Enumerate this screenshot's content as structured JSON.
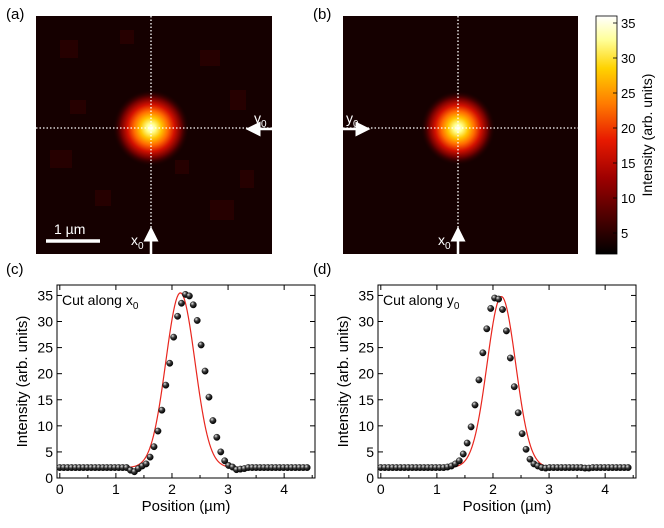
{
  "panels": {
    "a": {
      "label": "(a)",
      "scale_bar": "1 µm",
      "marker_x": "x",
      "marker_x_sub": "0",
      "marker_y": "y",
      "marker_y_sub": "0"
    },
    "b": {
      "label": "(b)",
      "marker_x": "x",
      "marker_x_sub": "0",
      "marker_y": "y",
      "marker_y_sub": "0"
    },
    "c": {
      "label": "(c)"
    },
    "d": {
      "label": "(d)"
    }
  },
  "colorbar": {
    "label": "Intensity (arb. units)",
    "ticks": [
      "35",
      "30",
      "25",
      "20",
      "15",
      "10",
      "5"
    ],
    "tick_values": [
      35,
      30,
      25,
      20,
      15,
      10,
      5
    ],
    "range": [
      2,
      36
    ],
    "colormap": [
      "#000000",
      "#4a0000",
      "#9e0000",
      "#e81a00",
      "#ff7a00",
      "#ffd200",
      "#ffff99",
      "#ffffff"
    ]
  },
  "colors": {
    "fit": "#e8261e",
    "points": "#1a1a1a",
    "marker": "#ffffff"
  },
  "chart_data": [
    {
      "type": "scatter",
      "panel": "c",
      "annotation": "Cut along x",
      "annotation_sub": "0",
      "xlabel": "Position (µm)",
      "ylabel": "Intensity (arb. units)",
      "xlim": [
        -0.05,
        4.55
      ],
      "ylim": [
        0,
        37
      ],
      "xticks": [
        0,
        1,
        2,
        3,
        4
      ],
      "yticks": [
        0,
        5,
        10,
        15,
        20,
        25,
        30,
        35
      ],
      "series": [
        {
          "name": "data",
          "x_start": 0.0,
          "x_step": 0.07,
          "y": [
            2.0,
            2.0,
            2.0,
            2.0,
            2.0,
            2.0,
            2.0,
            2.0,
            2.0,
            2.0,
            2.0,
            2.0,
            2.0,
            2.0,
            2.0,
            2.0,
            2.0,
            2.0,
            1.5,
            1.2,
            1.8,
            2.3,
            2.7,
            4.0,
            6.0,
            9.0,
            13.0,
            17.8,
            22.0,
            27.0,
            31.0,
            33.5,
            35.2,
            34.9,
            33.2,
            30.2,
            25.5,
            20.5,
            15.5,
            11.0,
            7.8,
            5.0,
            3.3,
            2.4,
            2.1,
            1.6,
            1.7,
            1.8,
            2.0,
            2.0,
            2.0,
            2.0,
            2.0,
            2.0,
            2.0,
            2.0,
            2.0,
            2.0,
            2.0,
            2.0,
            2.0,
            2.0,
            2.0,
            2.0
          ]
        },
        {
          "name": "fit",
          "center": 2.15,
          "sigma": 0.26,
          "amplitude": 33.5,
          "offset": 2.0
        }
      ]
    },
    {
      "type": "scatter",
      "panel": "d",
      "annotation": "Cut along y",
      "annotation_sub": "0",
      "xlabel": "Position (µm)",
      "ylabel": "Intensity (arb. units)",
      "xlim": [
        -0.05,
        4.55
      ],
      "ylim": [
        0,
        37
      ],
      "xticks": [
        0,
        1,
        2,
        3,
        4
      ],
      "yticks": [
        0,
        5,
        10,
        15,
        20,
        25,
        30,
        35
      ],
      "series": [
        {
          "name": "data",
          "x_start": 0.0,
          "x_step": 0.07,
          "y": [
            2.0,
            2.0,
            2.0,
            2.0,
            2.0,
            2.0,
            2.0,
            2.0,
            2.0,
            2.0,
            2.0,
            2.0,
            2.0,
            2.0,
            2.0,
            2.0,
            2.0,
            2.1,
            2.3,
            2.7,
            3.3,
            4.6,
            6.7,
            9.8,
            14.0,
            18.8,
            24.0,
            28.6,
            32.5,
            34.5,
            34.3,
            32.3,
            28.2,
            23.0,
            17.5,
            12.5,
            8.5,
            5.5,
            3.6,
            2.7,
            2.3,
            2.0,
            1.9,
            2.0,
            2.0,
            2.0,
            2.0,
            2.0,
            2.0,
            2.0,
            2.0,
            2.0,
            1.9,
            1.9,
            2.0,
            2.0,
            2.0,
            2.0,
            2.0,
            2.0,
            2.0,
            2.0,
            2.0,
            2.0
          ]
        },
        {
          "name": "fit",
          "center": 2.15,
          "sigma": 0.255,
          "amplitude": 32.8,
          "offset": 2.0
        }
      ]
    }
  ]
}
